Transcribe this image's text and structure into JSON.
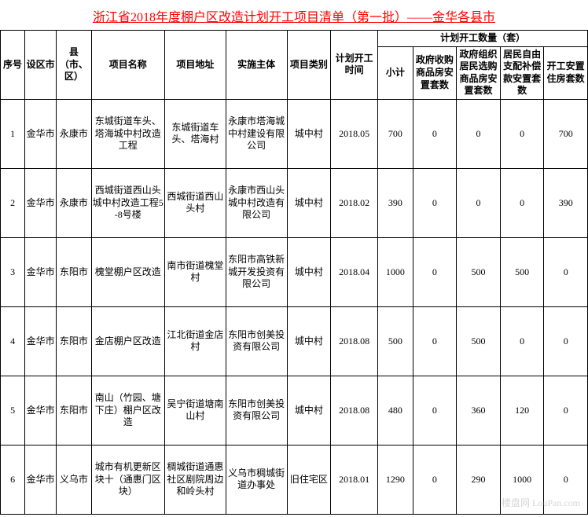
{
  "title": "浙江省2018年度棚户区改造计划开工项目清单（第一批）——金华各县市",
  "title_color": "#ff0000",
  "border_color": "#000000",
  "background_color": "#ffffff",
  "font_family": "SimSun",
  "header": {
    "seq": "序号",
    "city": "设区市",
    "county": "县（市、区）",
    "project_name": "项目名称",
    "project_addr": "项目地址",
    "implementer": "实施主体",
    "project_type": "项目类别",
    "plan_time": "计划开工时间",
    "plan_count_group": "计划开工数量（套）",
    "subtotal": "小计",
    "n1": "政府收购商品房安置套数",
    "n2": "政府组织居民选购商品房安置套数",
    "n3": "居民自由支配补偿款安置套数",
    "n4": "开工安置住房套数"
  },
  "rows": [
    {
      "seq": "1",
      "city": "金华市",
      "county": "永康市",
      "name": "东城街道车头、塔海城中村改造工程",
      "addr": "东城街道车头、塔海村",
      "impl": "永康市塔海城中村建设有限公司",
      "type": "城中村",
      "time": "2018.05",
      "subtotal": "700",
      "n1": "0",
      "n2": "0",
      "n3": "0",
      "n4": "700"
    },
    {
      "seq": "2",
      "city": "金华市",
      "county": "永康市",
      "name": "西城街道西山头城中村改造工程5-8号楼",
      "addr": "西城街道西山头村",
      "impl": "永康市西山头城中村改造有限公司",
      "type": "城中村",
      "time": "2018.02",
      "subtotal": "390",
      "n1": "0",
      "n2": "0",
      "n3": "0",
      "n4": "390"
    },
    {
      "seq": "3",
      "city": "金华市",
      "county": "东阳市",
      "name": "槐堂棚户区改造",
      "addr": "南市街道槐堂村",
      "impl": "东阳市高铁新城开发投资有限公司",
      "type": "城中村",
      "time": "2018.04",
      "subtotal": "1000",
      "n1": "0",
      "n2": "500",
      "n3": "500",
      "n4": "0"
    },
    {
      "seq": "4",
      "city": "金华市",
      "county": "东阳市",
      "name": "金店棚户区改造",
      "addr": "江北街道金店村",
      "impl": "东阳市创美投资有限公司",
      "type": "城中村",
      "time": "2018.08",
      "subtotal": "500",
      "n1": "0",
      "n2": "500",
      "n3": "0",
      "n4": "0"
    },
    {
      "seq": "5",
      "city": "金华市",
      "county": "东阳市",
      "name": "南山（竹园、塘下庄）棚户区改造",
      "addr": "吴宁街道塘南山村",
      "impl": "东阳市创美投资有限公司",
      "type": "城中村",
      "time": "2018.08",
      "subtotal": "480",
      "n1": "0",
      "n2": "360",
      "n3": "120",
      "n4": "0"
    },
    {
      "seq": "6",
      "city": "金华市",
      "county": "义乌市",
      "name": "城市有机更新区块十（通惠门区块）",
      "addr": "稠城街道通惠社区剧院周边和岭头村",
      "impl": "义乌市稠城街道办事处",
      "type": "旧住宅区",
      "time": "2018.01",
      "subtotal": "1290",
      "n1": "0",
      "n2": "290",
      "n3": "1000",
      "n4": "0"
    }
  ],
  "watermark": "楼盘网 LouPan.com"
}
